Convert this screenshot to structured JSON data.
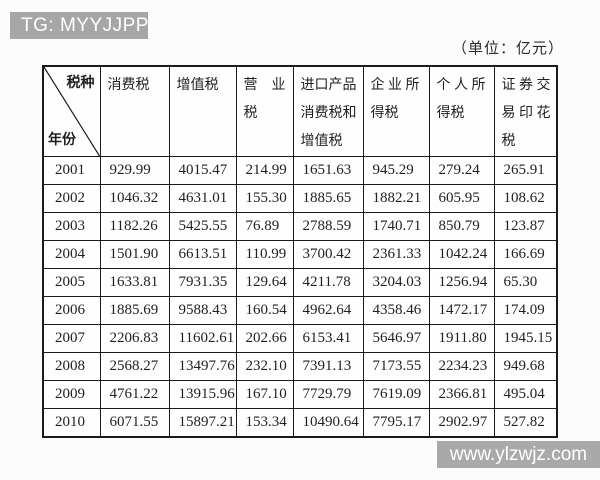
{
  "watermarks": {
    "top": "TG: MYYJJPP",
    "bottom": "www.ylzwjz.com"
  },
  "unit_note": "（单位：亿元）",
  "accent_colors": {
    "banner_gray": "#a6a6a6",
    "border_black": "#1a1a1a"
  },
  "table": {
    "corner": {
      "top_right": "税种",
      "bottom_left": "年份"
    },
    "columns": [
      "消费税",
      "增值税",
      "营　业\n税",
      "进口产品\n消费税和\n增值税",
      "企 业 所\n得税",
      "个 人 所\n得税",
      "证 券 交\n易 印 花\n税"
    ],
    "rows": [
      {
        "year": "2001",
        "values": [
          "929.99",
          "4015.47",
          "214.99",
          "1651.63",
          "945.29",
          "279.24",
          "265.91"
        ]
      },
      {
        "year": "2002",
        "values": [
          "1046.32",
          "4631.01",
          "155.30",
          "1885.65",
          "1882.21",
          "605.95",
          "108.62"
        ]
      },
      {
        "year": "2003",
        "values": [
          "1182.26",
          "5425.55",
          "76.89",
          "2788.59",
          "1740.71",
          "850.79",
          "123.87"
        ]
      },
      {
        "year": "2004",
        "values": [
          "1501.90",
          "6613.51",
          "110.99",
          "3700.42",
          "2361.33",
          "1042.24",
          "166.69"
        ]
      },
      {
        "year": "2005",
        "values": [
          "1633.81",
          "7931.35",
          "129.64",
          "4211.78",
          "3204.03",
          "1256.94",
          "65.30"
        ]
      },
      {
        "year": "2006",
        "values": [
          "1885.69",
          "9588.43",
          "160.54",
          "4962.64",
          "4358.46",
          "1472.17",
          "174.09"
        ]
      },
      {
        "year": "2007",
        "values": [
          "2206.83",
          "11602.61",
          "202.66",
          "6153.41",
          "5646.97",
          "1911.80",
          "1945.15"
        ]
      },
      {
        "year": "2008",
        "values": [
          "2568.27",
          "13497.76",
          "232.10",
          "7391.13",
          "7173.55",
          "2234.23",
          "949.68"
        ]
      },
      {
        "year": "2009",
        "values": [
          "4761.22",
          "13915.96",
          "167.10",
          "7729.79",
          "7619.09",
          "2366.81",
          "495.04"
        ]
      },
      {
        "year": "2010",
        "values": [
          "6071.55",
          "15897.21",
          "153.34",
          "10490.64",
          "7795.17",
          "2902.97",
          "527.82"
        ]
      }
    ]
  }
}
